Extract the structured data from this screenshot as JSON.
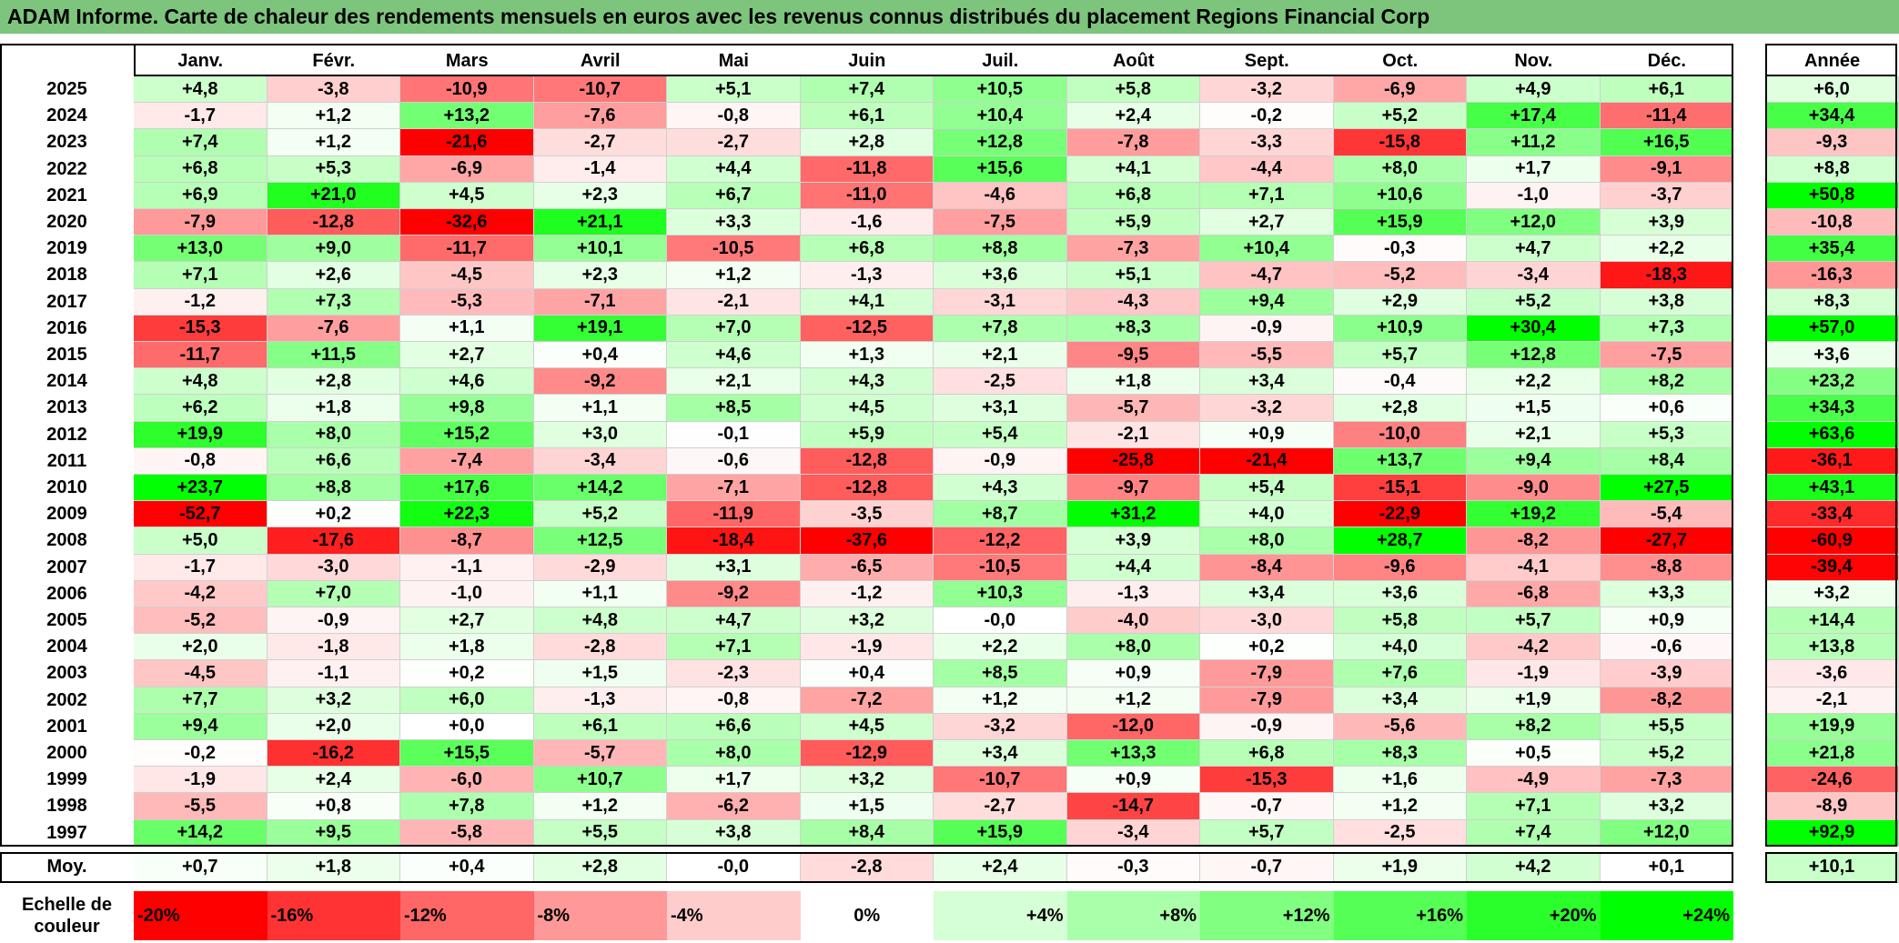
{
  "title": "ADAM Informe. Carte de chaleur des rendements mensuels en euros avec les revenus connus distribués du placement Regions Financial Corp",
  "chart_data": {
    "type": "heatmap",
    "columns": [
      "Janv.",
      "Févr.",
      "Mars",
      "Avril",
      "Mai",
      "Juin",
      "Juil.",
      "Août",
      "Sept.",
      "Oct.",
      "Nov.",
      "Déc."
    ],
    "year_header": "Année",
    "rows": [
      {
        "year": "2025",
        "months": [
          "+4,8",
          "-3,8",
          "-10,9",
          "-10,7",
          "+5,1",
          "+7,4",
          "+10,5",
          "+5,8",
          "-3,2",
          "-6,9",
          "+4,9",
          "+6,1"
        ],
        "annual": "+6,0"
      },
      {
        "year": "2024",
        "months": [
          "-1,7",
          "+1,2",
          "+13,2",
          "-7,6",
          "-0,8",
          "+6,1",
          "+10,4",
          "+2,4",
          "-0,2",
          "+5,2",
          "+17,4",
          "-11,4"
        ],
        "annual": "+34,4"
      },
      {
        "year": "2023",
        "months": [
          "+7,4",
          "+1,2",
          "-21,6",
          "-2,7",
          "-2,7",
          "+2,8",
          "+12,8",
          "-7,8",
          "-3,3",
          "-15,8",
          "+11,2",
          "+16,5"
        ],
        "annual": "-9,3"
      },
      {
        "year": "2022",
        "months": [
          "+6,8",
          "+5,3",
          "-6,9",
          "-1,4",
          "+4,4",
          "-11,8",
          "+15,6",
          "+4,1",
          "-4,4",
          "+8,0",
          "+1,7",
          "-9,1"
        ],
        "annual": "+8,8"
      },
      {
        "year": "2021",
        "months": [
          "+6,9",
          "+21,0",
          "+4,5",
          "+2,3",
          "+6,7",
          "-11,0",
          "-4,6",
          "+6,8",
          "+7,1",
          "+10,6",
          "-1,0",
          "-3,7"
        ],
        "annual": "+50,8"
      },
      {
        "year": "2020",
        "months": [
          "-7,9",
          "-12,8",
          "-32,6",
          "+21,1",
          "+3,3",
          "-1,6",
          "-7,5",
          "+5,9",
          "+2,7",
          "+15,9",
          "+12,0",
          "+3,9"
        ],
        "annual": "-10,8"
      },
      {
        "year": "2019",
        "months": [
          "+13,0",
          "+9,0",
          "-11,7",
          "+10,1",
          "-10,5",
          "+6,8",
          "+8,8",
          "-7,3",
          "+10,4",
          "-0,3",
          "+4,7",
          "+2,2"
        ],
        "annual": "+35,4"
      },
      {
        "year": "2018",
        "months": [
          "+7,1",
          "+2,6",
          "-4,5",
          "+2,3",
          "+1,2",
          "-1,3",
          "+3,6",
          "+5,1",
          "-4,7",
          "-5,2",
          "-3,4",
          "-18,3"
        ],
        "annual": "-16,3"
      },
      {
        "year": "2017",
        "months": [
          "-1,2",
          "+7,3",
          "-5,3",
          "-7,1",
          "-2,1",
          "+4,1",
          "-3,1",
          "-4,3",
          "+9,4",
          "+2,9",
          "+5,2",
          "+3,8"
        ],
        "annual": "+8,3"
      },
      {
        "year": "2016",
        "months": [
          "-15,3",
          "-7,6",
          "+1,1",
          "+19,1",
          "+7,0",
          "-12,5",
          "+7,8",
          "+8,3",
          "-0,9",
          "+10,9",
          "+30,4",
          "+7,3"
        ],
        "annual": "+57,0"
      },
      {
        "year": "2015",
        "months": [
          "-11,7",
          "+11,5",
          "+2,7",
          "+0,4",
          "+4,6",
          "+1,3",
          "+2,1",
          "-9,5",
          "-5,5",
          "+5,7",
          "+12,8",
          "-7,5"
        ],
        "annual": "+3,6"
      },
      {
        "year": "2014",
        "months": [
          "+4,8",
          "+2,8",
          "+4,6",
          "-9,2",
          "+2,1",
          "+4,3",
          "-2,5",
          "+1,8",
          "+3,4",
          "-0,4",
          "+2,2",
          "+8,2"
        ],
        "annual": "+23,2"
      },
      {
        "year": "2013",
        "months": [
          "+6,2",
          "+1,8",
          "+9,8",
          "+1,1",
          "+8,5",
          "+4,5",
          "+3,1",
          "-5,7",
          "-3,2",
          "+2,8",
          "+1,5",
          "+0,6"
        ],
        "annual": "+34,3"
      },
      {
        "year": "2012",
        "months": [
          "+19,9",
          "+8,0",
          "+15,2",
          "+3,0",
          "-0,1",
          "+5,9",
          "+5,4",
          "-2,1",
          "+0,9",
          "-10,0",
          "+2,1",
          "+5,3"
        ],
        "annual": "+63,6"
      },
      {
        "year": "2011",
        "months": [
          "-0,8",
          "+6,6",
          "-7,4",
          "-3,4",
          "-0,6",
          "-12,8",
          "-0,9",
          "-25,8",
          "-21,4",
          "+13,7",
          "+9,4",
          "+8,4"
        ],
        "annual": "-36,1"
      },
      {
        "year": "2010",
        "months": [
          "+23,7",
          "+8,8",
          "+17,6",
          "+14,2",
          "-7,1",
          "-12,8",
          "+4,3",
          "-9,7",
          "+5,4",
          "-15,1",
          "-9,0",
          "+27,5"
        ],
        "annual": "+43,1"
      },
      {
        "year": "2009",
        "months": [
          "-52,7",
          "+0,2",
          "+22,3",
          "+5,2",
          "-11,9",
          "-3,5",
          "+8,7",
          "+31,2",
          "+4,0",
          "-22,9",
          "+19,2",
          "-5,4"
        ],
        "annual": "-33,4"
      },
      {
        "year": "2008",
        "months": [
          "+5,0",
          "-17,6",
          "-8,7",
          "+12,5",
          "-18,4",
          "-37,6",
          "-12,2",
          "+3,9",
          "+8,0",
          "+28,7",
          "-8,2",
          "-27,7"
        ],
        "annual": "-60,9"
      },
      {
        "year": "2007",
        "months": [
          "-1,7",
          "-3,0",
          "-1,1",
          "-2,9",
          "+3,1",
          "-6,5",
          "-10,5",
          "+4,4",
          "-8,4",
          "-9,6",
          "-4,1",
          "-8,8"
        ],
        "annual": "-39,4"
      },
      {
        "year": "2006",
        "months": [
          "-4,2",
          "+7,0",
          "-1,0",
          "+1,1",
          "-9,2",
          "-1,2",
          "+10,3",
          "-1,3",
          "+3,4",
          "+3,6",
          "-6,8",
          "+3,3"
        ],
        "annual": "+3,2"
      },
      {
        "year": "2005",
        "months": [
          "-5,2",
          "-0,9",
          "+2,7",
          "+4,8",
          "+4,7",
          "+3,2",
          "-0,0",
          "-4,0",
          "-3,0",
          "+5,8",
          "+5,7",
          "+0,9"
        ],
        "annual": "+14,4"
      },
      {
        "year": "2004",
        "months": [
          "+2,0",
          "-1,8",
          "+1,8",
          "-2,8",
          "+7,1",
          "-1,9",
          "+2,2",
          "+8,0",
          "+0,2",
          "+4,0",
          "-4,2",
          "-0,6"
        ],
        "annual": "+13,8"
      },
      {
        "year": "2003",
        "months": [
          "-4,5",
          "-1,1",
          "+0,2",
          "+1,5",
          "-2,3",
          "+0,4",
          "+8,5",
          "+0,9",
          "-7,9",
          "+7,6",
          "-1,9",
          "-3,9"
        ],
        "annual": "-3,6"
      },
      {
        "year": "2002",
        "months": [
          "+7,7",
          "+3,2",
          "+6,0",
          "-1,3",
          "-0,8",
          "-7,2",
          "+1,2",
          "+1,2",
          "-7,9",
          "+3,4",
          "+1,9",
          "-8,2"
        ],
        "annual": "-2,1"
      },
      {
        "year": "2001",
        "months": [
          "+9,4",
          "+2,0",
          "+0,0",
          "+6,1",
          "+6,6",
          "+4,5",
          "-3,2",
          "-12,0",
          "-0,9",
          "-5,6",
          "+8,2",
          "+5,5"
        ],
        "annual": "+19,9"
      },
      {
        "year": "2000",
        "months": [
          "-0,2",
          "-16,2",
          "+15,5",
          "-5,7",
          "+8,0",
          "-12,9",
          "+3,4",
          "+13,3",
          "+6,8",
          "+8,3",
          "+0,5",
          "+5,2"
        ],
        "annual": "+21,8"
      },
      {
        "year": "1999",
        "months": [
          "-1,9",
          "+2,4",
          "-6,0",
          "+10,7",
          "+1,7",
          "+3,2",
          "-10,7",
          "+0,9",
          "-15,3",
          "+1,6",
          "-4,9",
          "-7,3"
        ],
        "annual": "-24,6"
      },
      {
        "year": "1998",
        "months": [
          "-5,5",
          "+0,8",
          "+7,8",
          "+1,2",
          "-6,2",
          "+1,5",
          "-2,7",
          "-14,7",
          "-0,7",
          "+1,2",
          "+7,1",
          "+3,2"
        ],
        "annual": "-8,9"
      },
      {
        "year": "1997",
        "months": [
          "+14,2",
          "+9,5",
          "-5,8",
          "+5,5",
          "+3,8",
          "+8,4",
          "+15,9",
          "-3,4",
          "+5,7",
          "-2,5",
          "+7,4",
          "+12,0"
        ],
        "annual": "+92,9"
      }
    ],
    "average": {
      "label": "Moy.",
      "months": [
        "+0,7",
        "+1,8",
        "+0,4",
        "+2,8",
        "-0,0",
        "-2,8",
        "+2,4",
        "-0,3",
        "-0,7",
        "+1,9",
        "+4,2",
        "+0,1"
      ],
      "annual": "+10,1"
    },
    "color_scale": {
      "label": "Echelle de couleur",
      "stops": [
        "-20%",
        "-16%",
        "-12%",
        "-8%",
        "-4%",
        "0%",
        "+4%",
        "+8%",
        "+12%",
        "+16%",
        "+20%",
        "+24%"
      ],
      "negative_color": "#ff0000",
      "zero_color": "#ffffff",
      "positive_color": "#00ff00"
    }
  }
}
